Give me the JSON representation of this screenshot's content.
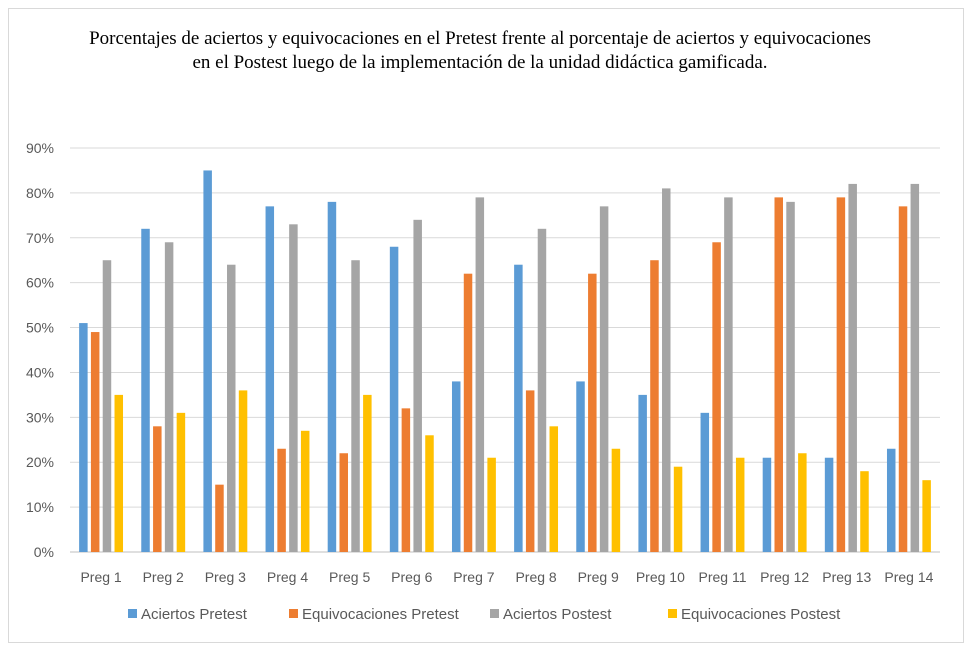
{
  "chart_data": {
    "type": "bar",
    "title": "Porcentajes de aciertos y equivocaciones en el Pretest frente al porcentaje de aciertos y equivocaciones en el Postest luego de la implementación de la unidad didáctica gamificada.",
    "categories": [
      "Preg 1",
      "Preg 2",
      "Preg 3",
      "Preg 4",
      "Preg 5",
      "Preg 6",
      "Preg 7",
      "Preg 8",
      "Preg 9",
      "Preg 10",
      "Preg 11",
      "Preg 12",
      "Preg 13",
      "Preg 14"
    ],
    "series": [
      {
        "name": "Aciertos Pretest",
        "color": "#5b9bd5",
        "values": [
          51,
          72,
          85,
          77,
          78,
          68,
          38,
          64,
          38,
          35,
          31,
          21,
          21,
          23
        ]
      },
      {
        "name": "Equivocaciones Pretest",
        "color": "#ed7d31",
        "values": [
          49,
          28,
          15,
          23,
          22,
          32,
          62,
          36,
          62,
          65,
          69,
          79,
          79,
          77
        ]
      },
      {
        "name": "Aciertos Postest",
        "color": "#a5a5a5",
        "values": [
          65,
          69,
          64,
          73,
          65,
          74,
          79,
          72,
          77,
          81,
          79,
          78,
          82,
          82
        ]
      },
      {
        "name": "Equivocaciones Postest",
        "color": "#ffc000",
        "values": [
          35,
          31,
          36,
          27,
          35,
          26,
          21,
          28,
          23,
          19,
          21,
          22,
          18,
          16
        ]
      }
    ],
    "yticks": [
      "0%",
      "10%",
      "20%",
      "30%",
      "40%",
      "50%",
      "60%",
      "70%",
      "80%",
      "90%"
    ],
    "ylim": [
      0,
      90
    ],
    "xlabel": "",
    "ylabel": "",
    "grid": true,
    "legend": "bottom"
  }
}
